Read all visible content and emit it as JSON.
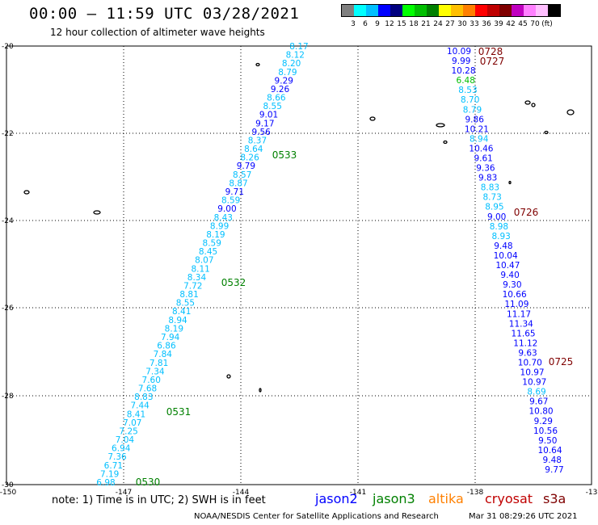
{
  "title": "00:00 – 11:59 UTC 03/28/2021",
  "subtitle": "12 hour collection of altimeter wave heights",
  "scale": {
    "colors": [
      "#7f7f7f",
      "#00ffff",
      "#00bfff",
      "#0000ff",
      "#00007f",
      "#00ff00",
      "#00bf00",
      "#007f00",
      "#ffff00",
      "#ffbf00",
      "#ff7f00",
      "#ff0000",
      "#bf0000",
      "#7f0000",
      "#bf00bf",
      "#ff7fff",
      "#ffbfff",
      "#000000"
    ],
    "labels": [
      "3",
      "6",
      "9",
      "12",
      "15",
      "18",
      "21",
      "24",
      "27",
      "30",
      "33",
      "36",
      "39",
      "42",
      "45",
      "70",
      "(ft)"
    ]
  },
  "axes": {
    "x_ticks": [
      "-150",
      "-147",
      "-144",
      "-141",
      "-138",
      "-13"
    ],
    "y_ticks": [
      "-20",
      "-22",
      "-24",
      "-26",
      "-28",
      "-30"
    ]
  },
  "track_west": {
    "values": [
      "8.17",
      "8.12",
      "8.20",
      "8.79",
      "9.29",
      "9.26",
      "8.66",
      "8.55",
      "9.01",
      "9.17",
      "9.56",
      "8.37",
      "8.64",
      "8.26",
      "9.79",
      "8.57",
      "8.87",
      "9.71",
      "8.59",
      "9.00",
      "8.43",
      "8.99",
      "8.19",
      "8.59",
      "8.45",
      "8.07",
      "8.11",
      "8.34",
      "7.72",
      "8.81",
      "8.55",
      "8.41",
      "8.94",
      "8.19",
      "7.94",
      "6.86",
      "7.84",
      "7.81",
      "7.34",
      "7.60",
      "7.68",
      "8.83",
      "7.44",
      "8.41",
      "7.07",
      "7.25",
      "7.04",
      "6.94",
      "7.36",
      "6.71",
      "7.19",
      "6.98"
    ],
    "time_labels": [
      "0533",
      "0532",
      "0531",
      "0530"
    ]
  },
  "track_east": {
    "values": [
      "10.09",
      "9.99",
      "10.28",
      "6.48",
      "8.53",
      "8.70",
      "8.79",
      "9.86",
      "10.21",
      "8.94",
      "10.46",
      "9.61",
      "9.36",
      "9.83",
      "8.83",
      "8.73",
      "8.95",
      "9.00",
      "8.98",
      "8.93",
      "9.48",
      "10.04",
      "10.47",
      "9.40",
      "9.30",
      "10.66",
      "11.09",
      "11.17",
      "11.34",
      "11.65",
      "11.12",
      "9.63",
      "10.70",
      "10.97",
      "10.97",
      "8.69",
      "9.67",
      "10.80",
      "9.29",
      "10.56",
      "9.50",
      "10.64",
      "9.48",
      "9.77"
    ],
    "time_labels": [
      "0728",
      "0727",
      "0726",
      "0725"
    ]
  },
  "note": "note: 1) Time is in UTC; 2) SWH is in feet",
  "satellites": [
    {
      "name": "jason2",
      "color": "#0000ff"
    },
    {
      "name": "jason3",
      "color": "#008000"
    },
    {
      "name": "altika",
      "color": "#ff8000"
    },
    {
      "name": "cryosat",
      "color": "#c00000"
    },
    {
      "name": "s3a",
      "color": "#7f0000"
    }
  ],
  "credit": "NOAA/NESDIS Center for Satellite Applications and Research",
  "timestamp": "Mar 31 08:29:26 UTC 2021"
}
